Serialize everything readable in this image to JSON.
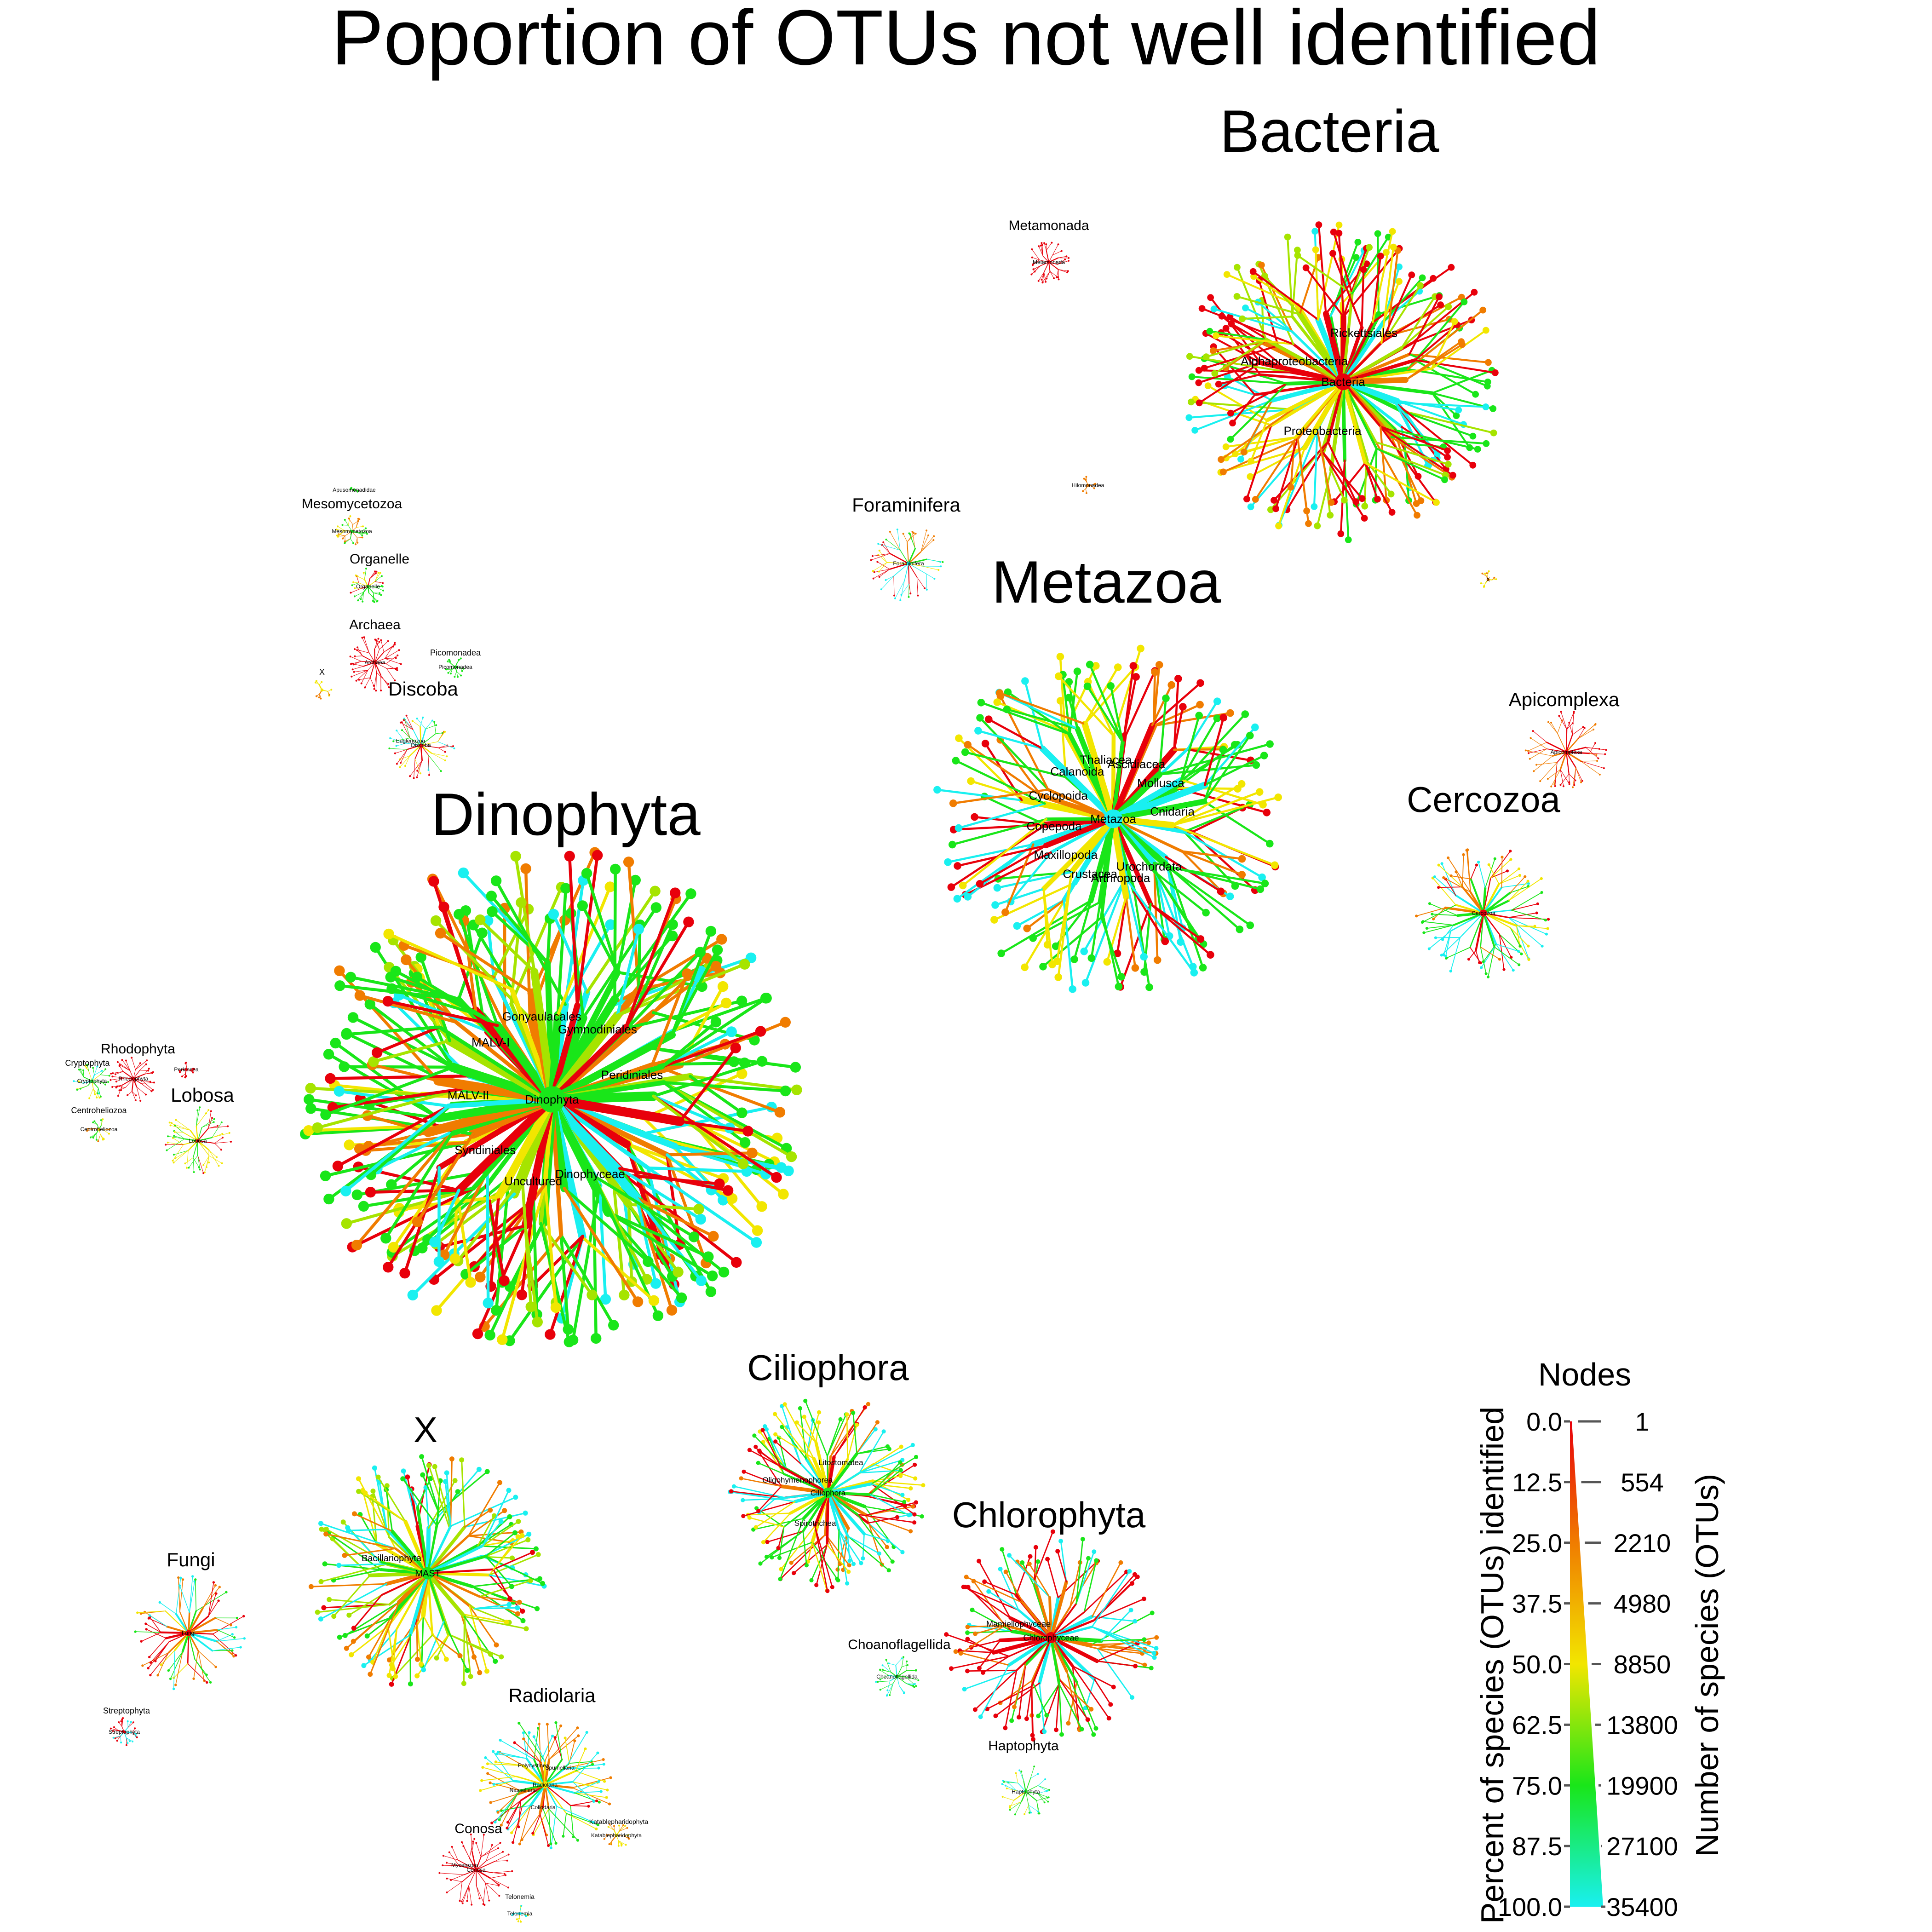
{
  "title": "Poportion of OTUs not well identified",
  "colors": {
    "red": "#e8000b",
    "orange": "#f07c00",
    "yellow": "#f2e600",
    "yellowgreen": "#a6e400",
    "green": "#19e619",
    "cyan": "#19f0f0"
  },
  "trees": [
    {
      "id": "bacteria",
      "label": "Bacteria",
      "label_size": "lbl-xl",
      "inner": [
        "Bacteria",
        "Proteobacteria",
        "Alphaproteobacteria",
        "Rickettsiales"
      ],
      "palette": [
        "red",
        "red",
        "orange",
        "yellow",
        "green",
        "cyan",
        "red",
        "yellowgreen"
      ]
    },
    {
      "id": "metamonada",
      "label": "Metamonada",
      "label_size": "lbl-s",
      "inner": [
        "Metamonada"
      ],
      "palette": [
        "red"
      ]
    },
    {
      "id": "hilomonadea",
      "label": "",
      "label_size": "lbl-xs",
      "inner": [
        "Hilomonadea"
      ],
      "palette": [
        "orange"
      ]
    },
    {
      "id": "foraminifera",
      "label": "Foraminifera",
      "label_size": "lbl-m",
      "inner": [
        "Foraminifera"
      ],
      "palette": [
        "cyan",
        "green",
        "orange",
        "yellow",
        "red"
      ]
    },
    {
      "id": "metazoa",
      "label": "Metazoa",
      "label_size": "lbl-xl",
      "inner": [
        "Metazoa",
        "Urochordata",
        "Arthropoda",
        "Crustacea",
        "Maxillopoda",
        "Copepoda",
        "Cyclopoida",
        "Calanoida",
        "Thaliacea",
        "Ascidiacea",
        "Mollusca",
        "Cnidaria"
      ],
      "palette": [
        "cyan",
        "green",
        "red",
        "orange",
        "yellow",
        "green"
      ]
    },
    {
      "id": "x_small_right",
      "label": "",
      "label_size": "lbl-xs",
      "inner": [
        "X"
      ],
      "palette": [
        "orange",
        "yellow"
      ]
    },
    {
      "id": "apicomplexa",
      "label": "Apicomplexa",
      "label_size": "lbl-m",
      "inner": [
        "Apicomplexa"
      ],
      "palette": [
        "red",
        "orange"
      ]
    },
    {
      "id": "cercozoa",
      "label": "Cercozoa",
      "label_size": "lbl-l",
      "inner": [
        "Cercozoa"
      ],
      "palette": [
        "red",
        "orange",
        "yellow",
        "green",
        "cyan"
      ]
    },
    {
      "id": "mesomycetozoa",
      "label": "Mesomycetozoa",
      "label_size": "lbl-s",
      "inner": [
        "Mesomycetozoa"
      ],
      "palette": [
        "green",
        "yellow",
        "orange"
      ]
    },
    {
      "id": "apusomonadidae",
      "label": "",
      "label_size": "lbl-xxs",
      "inner": [
        "Apusomonadidae"
      ],
      "palette": [
        "green"
      ]
    },
    {
      "id": "organelle",
      "label": "Organelle",
      "label_size": "lbl-s",
      "inner": [
        "Organelle"
      ],
      "palette": [
        "green",
        "yellow",
        "red"
      ]
    },
    {
      "id": "archaea",
      "label": "Archaea",
      "label_size": "lbl-s",
      "inner": [
        "Archaea"
      ],
      "palette": [
        "red"
      ]
    },
    {
      "id": "picomonadea",
      "label": "Picomonadea",
      "label_size": "lbl-xs",
      "inner": [
        "Picomonadea"
      ],
      "palette": [
        "green"
      ]
    },
    {
      "id": "x_small_left",
      "label": "X",
      "label_size": "lbl-xs",
      "inner": [],
      "palette": [
        "yellow",
        "orange"
      ]
    },
    {
      "id": "discoba",
      "label": "Discoba",
      "label_size": "lbl-m",
      "inner": [
        "Discoba",
        "Euglenozoa"
      ],
      "palette": [
        "red",
        "green",
        "cyan",
        "yellow"
      ]
    },
    {
      "id": "dinophyta",
      "label": "Dinophyta",
      "label_size": "lbl-xl",
      "inner": [
        "Dinophyta",
        "Dinophyceae",
        "Uncultured",
        "Syndiniales",
        "MALV-II",
        "MALV-I",
        "Gonyaulacales",
        "Gymnodiniales",
        "Peridiniales"
      ],
      "palette": [
        "green",
        "yellowgreen",
        "yellow",
        "orange",
        "red",
        "green",
        "cyan"
      ]
    },
    {
      "id": "rhodophyta",
      "label": "Rhodophyta",
      "label_size": "lbl-s",
      "inner": [
        "Rhodophyta"
      ],
      "palette": [
        "red"
      ]
    },
    {
      "id": "perkinsea",
      "label": "",
      "label_size": "lbl-xs",
      "inner": [
        "Perkinsea"
      ],
      "palette": [
        "red"
      ]
    },
    {
      "id": "cryptophyta",
      "label": "Cryptophyta",
      "label_size": "lbl-xs",
      "inner": [
        "Cryptophyta"
      ],
      "palette": [
        "green",
        "yellow",
        "cyan"
      ]
    },
    {
      "id": "centroheliozoa",
      "label": "Centroheliozoa",
      "label_size": "lbl-xs",
      "inner": [
        "Centroheliozoa"
      ],
      "palette": [
        "yellow",
        "orange",
        "green"
      ]
    },
    {
      "id": "lobosa",
      "label": "Lobosa",
      "label_size": "lbl-m",
      "inner": [
        "Lobosa"
      ],
      "palette": [
        "red",
        "green",
        "yellow"
      ]
    },
    {
      "id": "ciliophora",
      "label": "Ciliophora",
      "label_size": "lbl-l",
      "inner": [
        "Ciliophora",
        "Spirotrichea",
        "Oligohymenophorea",
        "Litostomatea"
      ],
      "palette": [
        "green",
        "red",
        "orange",
        "yellow",
        "cyan"
      ]
    },
    {
      "id": "x_big",
      "label": "X",
      "label_size": "lbl-l",
      "inner": [
        "MAST",
        "Bacillariophyta"
      ],
      "palette": [
        "green",
        "yellow",
        "orange",
        "cyan",
        "red",
        "yellowgreen"
      ]
    },
    {
      "id": "chlorophyta",
      "label": "Chlorophyta",
      "label_size": "lbl-l",
      "inner": [
        "Chlorophyceae",
        "Mamiellophyceae"
      ],
      "palette": [
        "red",
        "red",
        "cyan",
        "green",
        "orange"
      ]
    },
    {
      "id": "fungi",
      "label": "Fungi",
      "label_size": "lbl-m",
      "inner": [
        "Fungi"
      ],
      "palette": [
        "red",
        "orange",
        "green",
        "cyan",
        "yellow"
      ]
    },
    {
      "id": "streptophyta",
      "label": "Streptophyta",
      "label_size": "lbl-xs",
      "inner": [
        "Streptophyta"
      ],
      "palette": [
        "red",
        "cyan"
      ]
    },
    {
      "id": "choanoflagellida",
      "label": "Choanoflagellida",
      "label_size": "lbl-s",
      "inner": [
        "Choanoflagellida"
      ],
      "palette": [
        "green",
        "cyan"
      ]
    },
    {
      "id": "haptophyta",
      "label": "Haptophyta",
      "label_size": "lbl-s",
      "inner": [
        "Haptophyta"
      ],
      "palette": [
        "green",
        "yellow",
        "cyan"
      ]
    },
    {
      "id": "radiolaria",
      "label": "Radiolaria",
      "label_size": "lbl-m",
      "inner": [
        "Radiolaria",
        "Collodaria",
        "Nassellaria",
        "Polycystinea",
        "Spumellaria"
      ],
      "palette": [
        "yellow",
        "orange",
        "green",
        "cyan",
        "red"
      ]
    },
    {
      "id": "conosa",
      "label": "Conosa",
      "label_size": "lbl-s",
      "inner": [
        "Conosa",
        "Mycetozoa"
      ],
      "palette": [
        "red"
      ]
    },
    {
      "id": "telonemia",
      "label": "Telonemia",
      "label_size": "lbl-xxs",
      "inner": [
        "Telonemia"
      ],
      "palette": [
        "cyan",
        "yellow"
      ]
    },
    {
      "id": "katablepharidophyta",
      "label": "Katablepharidophyta",
      "label_size": "lbl-xxs",
      "inner": [
        "Katablepharidophyta"
      ],
      "palette": [
        "yellow",
        "orange"
      ]
    }
  ],
  "legend": {
    "title": "Nodes",
    "left_axis_label": "Percent of species (OTUs) identified",
    "right_axis_label": "Number of species (OTUs)",
    "left_ticks": [
      "0.0",
      "12.5",
      "25.0",
      "37.5",
      "50.0",
      "62.5",
      "75.0",
      "87.5",
      "100.0"
    ],
    "right_ticks": [
      "1",
      "554",
      "2210",
      "4980",
      "8850",
      "13800",
      "19900",
      "27100",
      "35400"
    ]
  }
}
